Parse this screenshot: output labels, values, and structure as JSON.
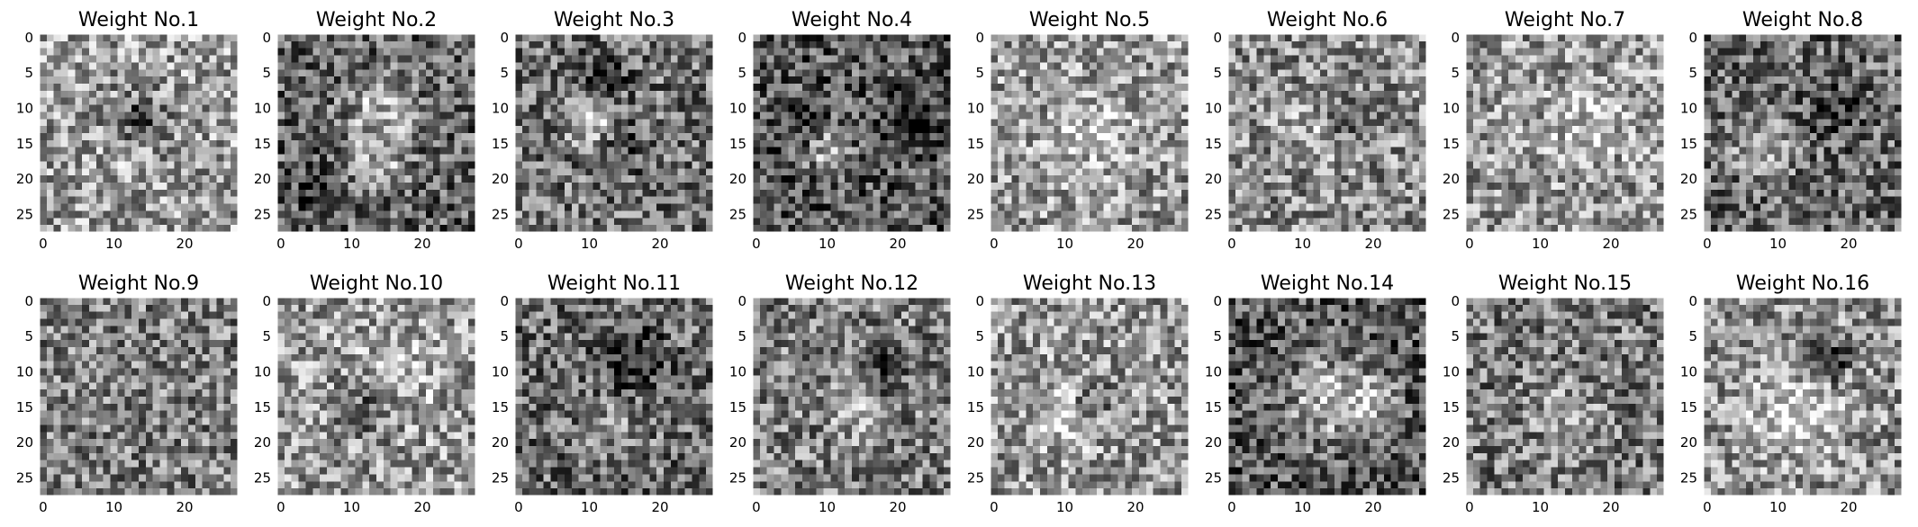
{
  "chart_data": {
    "type": "heatmap",
    "colormap": "gray",
    "grid": false,
    "layout": {
      "rows": 2,
      "cols": 8
    },
    "image_size": [
      28,
      28
    ],
    "xlim": [
      -0.5,
      27.5
    ],
    "ylim": [
      27.5,
      -0.5
    ],
    "x_ticks": [
      0,
      10,
      20
    ],
    "y_ticks": [
      0,
      5,
      10,
      15,
      20,
      25
    ],
    "x_tick_labels": [
      "0",
      "10",
      "20"
    ],
    "y_tick_labels": [
      "0",
      "5",
      "10",
      "15",
      "20",
      "25"
    ],
    "panels": [
      {
        "title": "Weight No.1"
      },
      {
        "title": "Weight No.2"
      },
      {
        "title": "Weight No.3"
      },
      {
        "title": "Weight No.4"
      },
      {
        "title": "Weight No.5"
      },
      {
        "title": "Weight No.6"
      },
      {
        "title": "Weight No.7"
      },
      {
        "title": "Weight No.8"
      },
      {
        "title": "Weight No.9"
      },
      {
        "title": "Weight No.10"
      },
      {
        "title": "Weight No.11"
      },
      {
        "title": "Weight No.12"
      },
      {
        "title": "Weight No.13"
      },
      {
        "title": "Weight No.14"
      },
      {
        "title": "Weight No.15"
      },
      {
        "title": "Weight No.16"
      }
    ]
  }
}
